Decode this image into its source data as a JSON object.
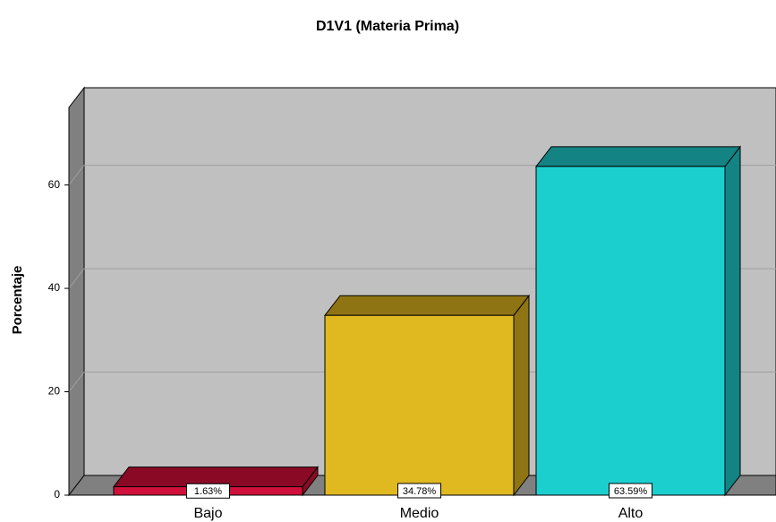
{
  "chart_data": {
    "type": "bar3d",
    "title": "D1V1 (Materia Prima)",
    "y_label": "Porcentaje",
    "categories": [
      "Bajo",
      "Medio",
      "Alto"
    ],
    "values": [
      1.63,
      34.78,
      63.59
    ],
    "value_labels": [
      "1.63%",
      "34.78%",
      "63.59%"
    ],
    "colors": [
      "#d0103a",
      "#e0b820",
      "#1ccfcf"
    ],
    "top_colors": [
      "#8a0a26",
      "#8f7414",
      "#138383"
    ],
    "ylim": [
      0,
      75
    ],
    "yticks": [
      0,
      20,
      40,
      60
    ],
    "grid": true
  }
}
